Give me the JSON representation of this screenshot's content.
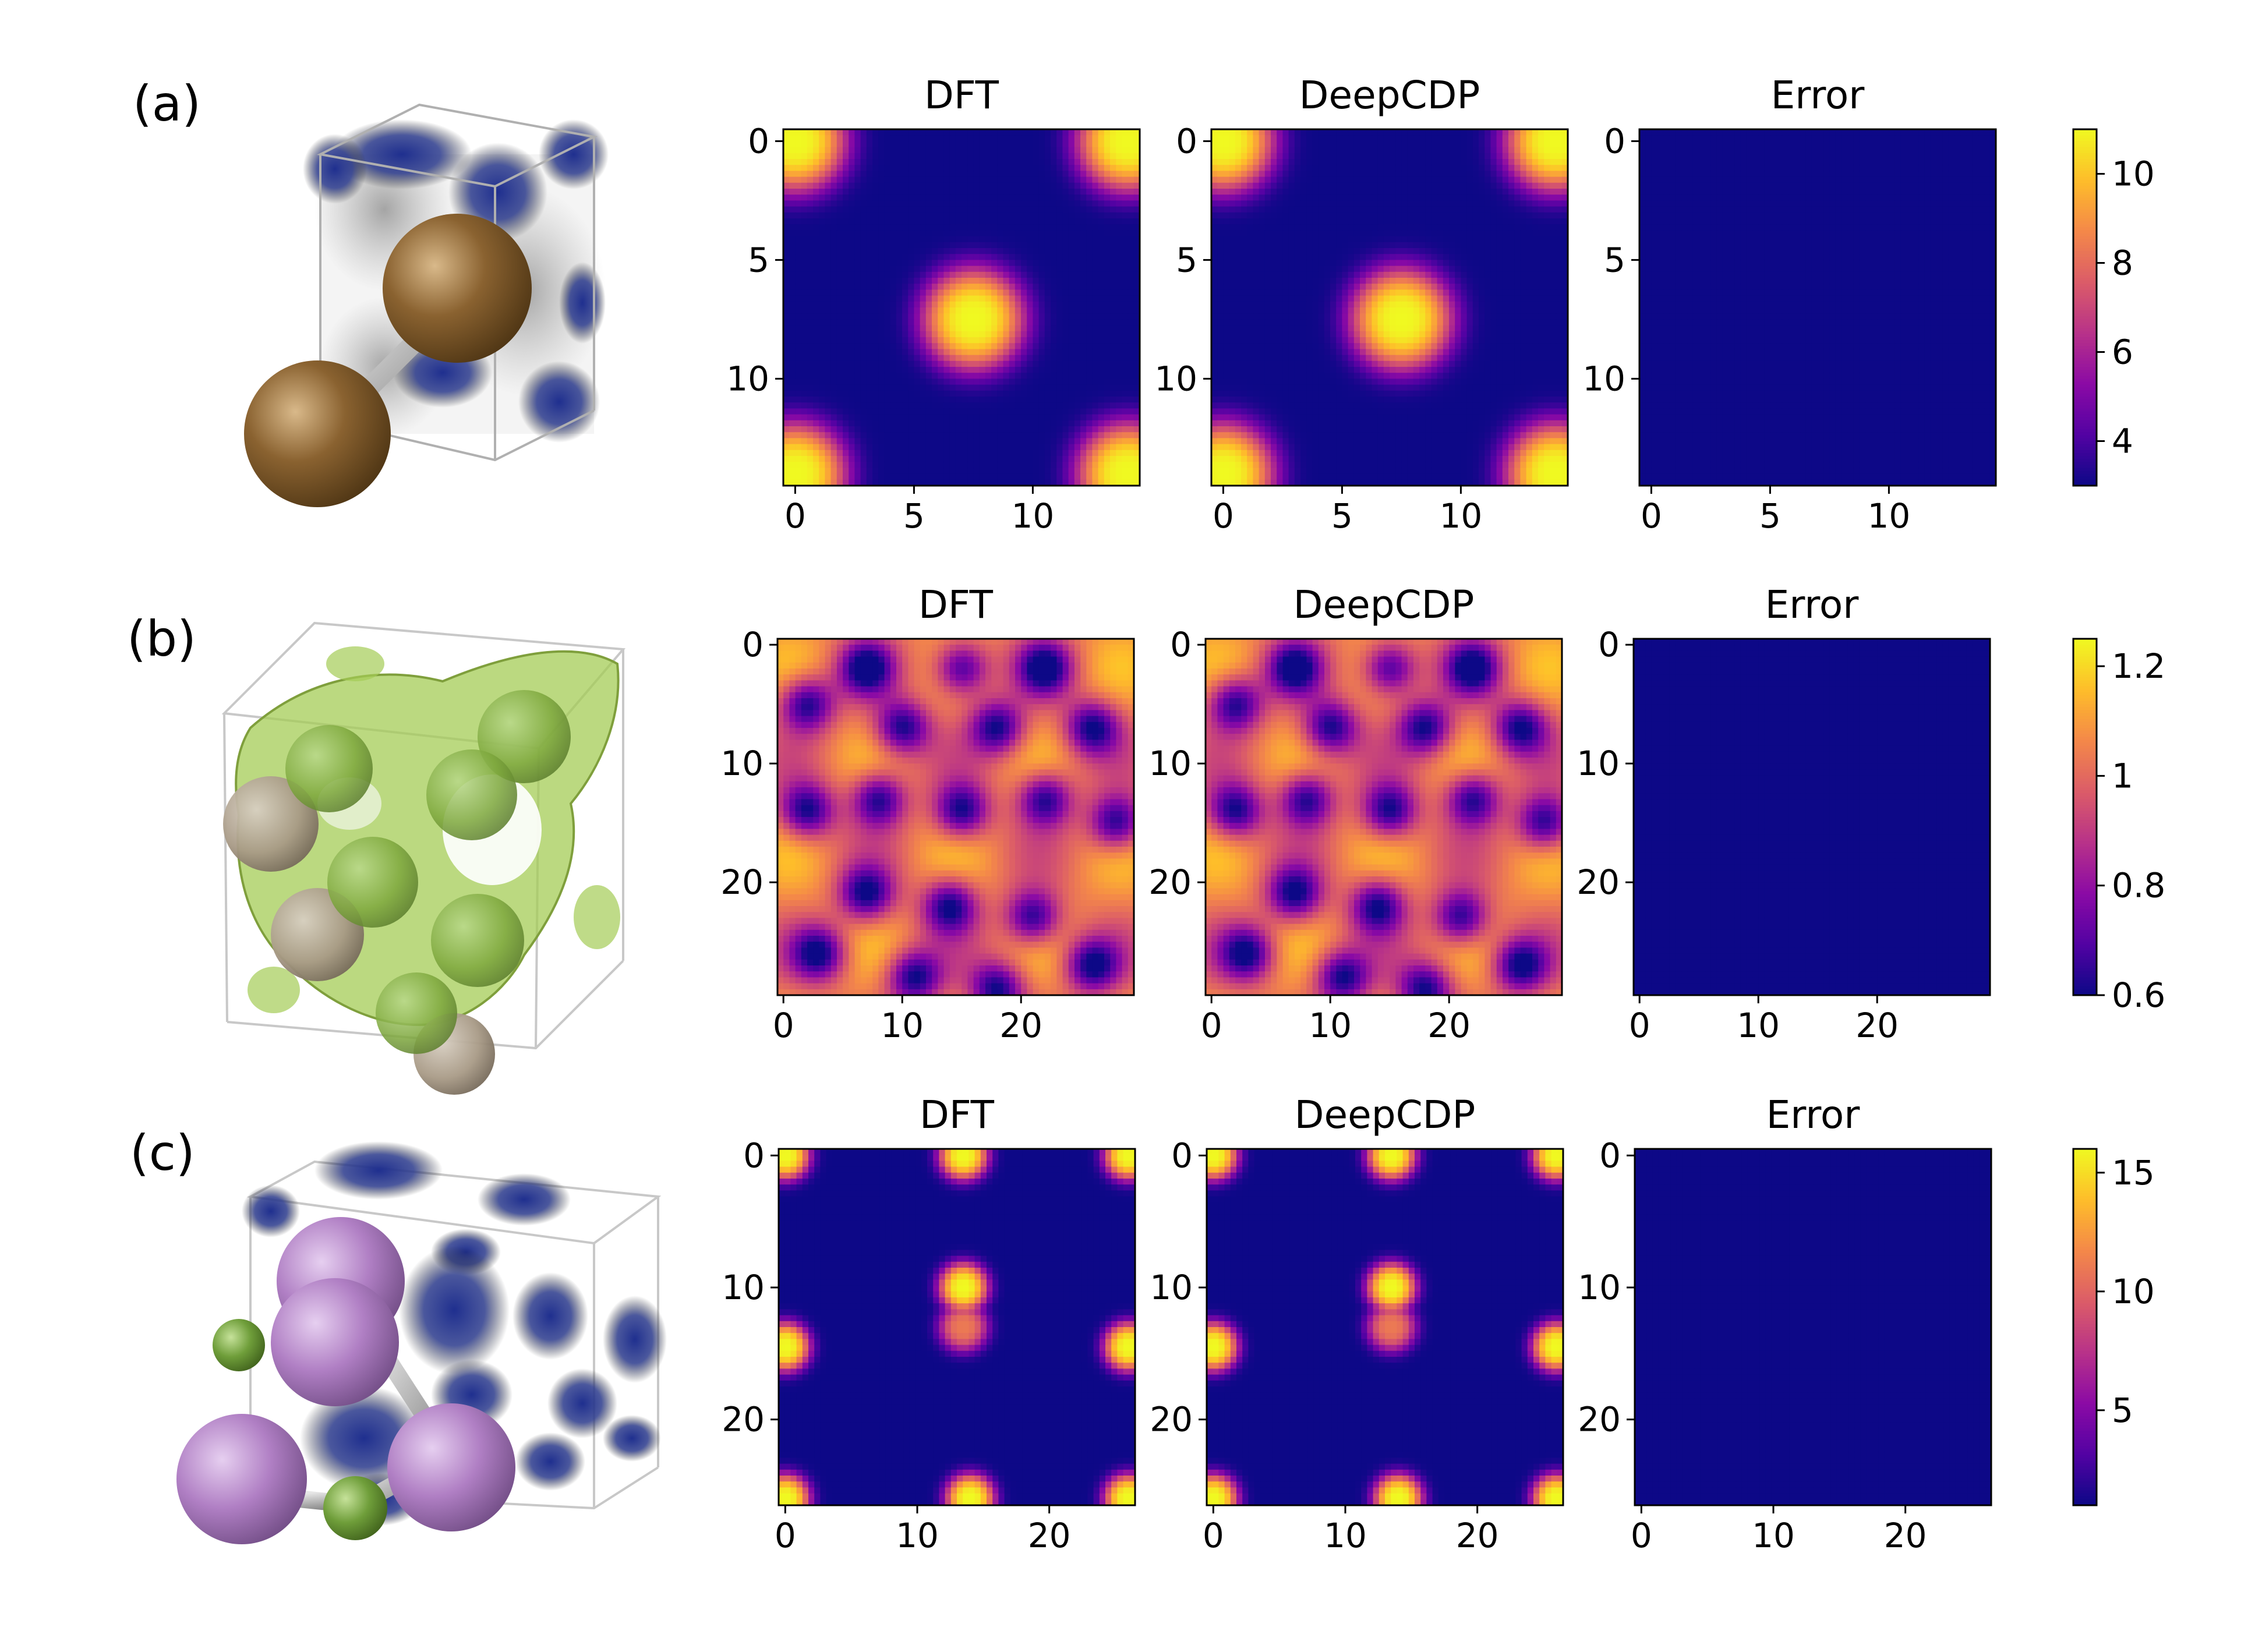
{
  "figure": {
    "rows": [
      {
        "label": "(a)",
        "grid_n": 15,
        "tick_values": [
          0,
          5,
          10
        ]
      },
      {
        "label": "(b)",
        "grid_n": 30,
        "tick_values": [
          0,
          10,
          20
        ]
      },
      {
        "label": "(c)",
        "grid_n": 27,
        "tick_values": [
          0,
          10,
          20
        ]
      }
    ],
    "column_titles": [
      "DFT",
      "DeepCDP",
      "Error"
    ]
  },
  "colors": {
    "colormap": "plasma",
    "cmap_stops": [
      "#0d0887",
      "#5302a3",
      "#8b0aa5",
      "#b83289",
      "#db5c68",
      "#f48849",
      "#febd2a",
      "#f0f921"
    ],
    "row_a_atom": "#8a6230",
    "row_b_isosurface": "#a4cc55",
    "row_b_atom_green": "#7ea83d",
    "row_b_atom_gray": "#a89a86",
    "row_c_atom_purple": "#b07fc4",
    "row_c_atom_green": "#6f9e3a",
    "density_blob": "#1f2f8f"
  },
  "chart_data": [
    {
      "panel": "a",
      "type": "heatmap",
      "titles": [
        "DFT",
        "DeepCDP",
        "Error"
      ],
      "grid_size": [
        15,
        15
      ],
      "xticks": [
        0,
        5,
        10
      ],
      "yticks": [
        0,
        5,
        10
      ],
      "colorbar": {
        "ticks": [
          4,
          6,
          8,
          10
        ],
        "range": [
          3.0,
          11.0
        ],
        "cmap": "plasma"
      },
      "peaks": [
        {
          "x": 0,
          "y": 0,
          "value": 11.0
        },
        {
          "x": 14,
          "y": 0,
          "value": 11.0
        },
        {
          "x": 0,
          "y": 14,
          "value": 11.0
        },
        {
          "x": 14,
          "y": 14,
          "value": 11.0
        },
        {
          "x": 7.5,
          "y": 7.5,
          "value": 11.0
        }
      ],
      "background_value": 3.0,
      "error_value": 3.0
    },
    {
      "panel": "b",
      "type": "heatmap",
      "titles": [
        "DFT",
        "DeepCDP",
        "Error"
      ],
      "grid_size": [
        30,
        30
      ],
      "xticks": [
        0,
        10,
        20
      ],
      "yticks": [
        0,
        10,
        20
      ],
      "colorbar": {
        "ticks": [
          0.6,
          0.8,
          1.0,
          1.2
        ],
        "range": [
          0.6,
          1.25
        ],
        "cmap": "plasma"
      },
      "pattern": "periodic lattice of low-density minima on a high-density background",
      "minima": [
        [
          7,
          2
        ],
        [
          15,
          2
        ],
        [
          22,
          2
        ],
        [
          2,
          5
        ],
        [
          26,
          7
        ],
        [
          10,
          7
        ],
        [
          18,
          7
        ],
        [
          2,
          14
        ],
        [
          8,
          13
        ],
        [
          15,
          14
        ],
        [
          22,
          13
        ],
        [
          28,
          15
        ],
        [
          7,
          21
        ],
        [
          14,
          22
        ],
        [
          21,
          23
        ],
        [
          3,
          26
        ],
        [
          26,
          27
        ],
        [
          11,
          28
        ],
        [
          18,
          29
        ]
      ],
      "background_value": 1.05,
      "error_value": 0.6
    },
    {
      "panel": "c",
      "type": "heatmap",
      "titles": [
        "DFT",
        "DeepCDP",
        "Error"
      ],
      "grid_size": [
        27,
        27
      ],
      "xticks": [
        0,
        10,
        20
      ],
      "yticks": [
        0,
        10,
        20
      ],
      "colorbar": {
        "ticks": [
          5,
          10,
          15
        ],
        "range": [
          1.0,
          16.0
        ],
        "cmap": "plasma"
      },
      "peaks": [
        {
          "x": 0,
          "y": 0,
          "value": 16.0
        },
        {
          "x": 13.5,
          "y": 0,
          "value": 16.0
        },
        {
          "x": 26,
          "y": 0,
          "value": 16.0
        },
        {
          "x": 13.5,
          "y": 10,
          "value": 16.0
        },
        {
          "x": 13.5,
          "y": 13,
          "value": 11.0
        },
        {
          "x": 0,
          "y": 14.5,
          "value": 16.0
        },
        {
          "x": 26,
          "y": 14.5,
          "value": 16.0
        },
        {
          "x": 0,
          "y": 26,
          "value": 16.0
        },
        {
          "x": 14,
          "y": 26,
          "value": 16.0
        },
        {
          "x": 26,
          "y": 26,
          "value": 16.0
        }
      ],
      "background_value": 1.0,
      "error_value": 1.0
    }
  ]
}
